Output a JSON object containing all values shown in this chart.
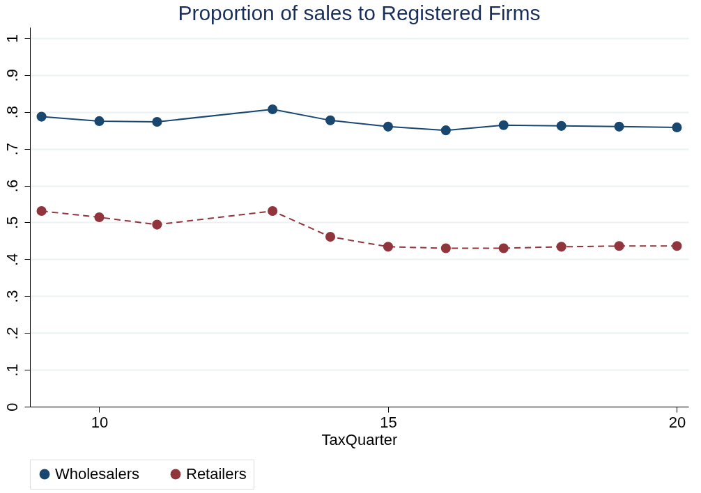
{
  "chart_data": {
    "type": "line",
    "title": "Proportion of sales to Registered Firms",
    "xlabel": "TaxQuarter",
    "x": [
      9,
      10,
      11,
      13,
      14,
      15,
      16,
      17,
      18,
      19,
      20
    ],
    "series": [
      {
        "name": "Wholesalers",
        "color": "#1a476f",
        "line_style": "solid",
        "values": [
          0.787,
          0.775,
          0.773,
          0.807,
          0.777,
          0.76,
          0.75,
          0.764,
          0.762,
          0.76,
          0.758
        ]
      },
      {
        "name": "Retailers",
        "color": "#90353b",
        "line_style": "dashed",
        "values": [
          0.531,
          0.514,
          0.494,
          0.531,
          0.461,
          0.434,
          0.43,
          0.43,
          0.434,
          0.436,
          0.436
        ]
      }
    ],
    "xlim": [
      8.8,
      20.2
    ],
    "xticks": [
      10,
      15,
      20
    ],
    "ylim": [
      0,
      1.03
    ],
    "yticks": [
      0,
      {
        "value": 0.1,
        "label": ".1"
      },
      {
        "value": 0.2,
        "label": ".2"
      },
      {
        "value": 0.3,
        "label": ".3"
      },
      {
        "value": 0.4,
        "label": ".4"
      },
      {
        "value": 0.5,
        "label": ".5"
      },
      {
        "value": 0.6,
        "label": ".6"
      },
      {
        "value": 0.7,
        "label": ".7"
      },
      {
        "value": 0.8,
        "label": ".8"
      },
      {
        "value": 0.9,
        "label": ".9"
      },
      1
    ],
    "grid": "y",
    "legend": "bottom",
    "marker": "circle"
  }
}
